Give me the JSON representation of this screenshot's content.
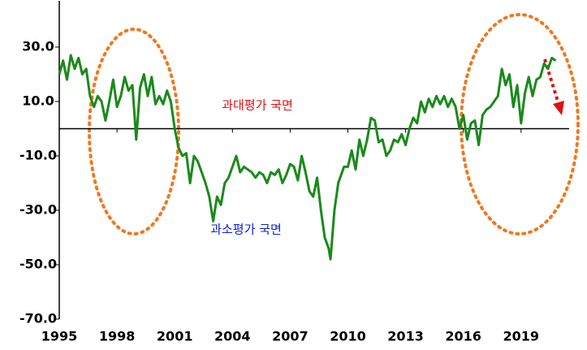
{
  "chart_data": {
    "type": "line",
    "color": "#1a8a1a",
    "annotations": [
      "과대평가 국면",
      "과소평가 국면"
    ],
    "xlim": [
      1995,
      2021.5
    ],
    "xticks": [
      1995,
      1998,
      2001,
      2004,
      2007,
      2010,
      2013,
      2016,
      2019
    ],
    "ylim": [
      -70,
      47
    ],
    "yticks": [
      {
        "value": 30,
        "label": "30.0"
      },
      {
        "value": 10,
        "label": "10.0"
      },
      {
        "value": -10,
        "label": "-10.0"
      },
      {
        "value": -30,
        "label": "-30.0"
      },
      {
        "value": -50,
        "label": "-50.0"
      },
      {
        "value": -70,
        "label": "-70.0"
      }
    ],
    "x": [
      1995.0,
      1995.2,
      1995.4,
      1995.6,
      1995.8,
      1996.0,
      1996.2,
      1996.4,
      1996.6,
      1996.8,
      1997.0,
      1997.2,
      1997.4,
      1997.6,
      1997.8,
      1998.0,
      1998.2,
      1998.4,
      1998.6,
      1998.8,
      1999.0,
      1999.2,
      1999.4,
      1999.6,
      1999.8,
      2000.0,
      2000.2,
      2000.4,
      2000.6,
      2000.8,
      2001.0,
      2001.2,
      2001.4,
      2001.6,
      2001.8,
      2002.0,
      2002.2,
      2002.4,
      2002.6,
      2002.8,
      2003.0,
      2003.2,
      2003.4,
      2003.6,
      2003.8,
      2004.0,
      2004.2,
      2004.4,
      2004.6,
      2004.8,
      2005.0,
      2005.2,
      2005.4,
      2005.6,
      2005.8,
      2006.0,
      2006.2,
      2006.4,
      2006.6,
      2006.8,
      2007.0,
      2007.2,
      2007.4,
      2007.6,
      2007.8,
      2008.0,
      2008.2,
      2008.4,
      2008.6,
      2008.8,
      2009.0,
      2009.1,
      2009.3,
      2009.5,
      2009.8,
      2010.0,
      2010.2,
      2010.4,
      2010.6,
      2010.8,
      2011.0,
      2011.2,
      2011.4,
      2011.6,
      2011.8,
      2012.0,
      2012.2,
      2012.4,
      2012.6,
      2012.8,
      2013.0,
      2013.2,
      2013.4,
      2013.6,
      2013.8,
      2014.0,
      2014.2,
      2014.4,
      2014.6,
      2014.8,
      2015.0,
      2015.2,
      2015.4,
      2015.6,
      2015.8,
      2016.0,
      2016.2,
      2016.4,
      2016.6,
      2016.8,
      2017.0,
      2017.2,
      2017.4,
      2017.6,
      2017.8,
      2018.0,
      2018.2,
      2018.4,
      2018.6,
      2018.8,
      2019.0,
      2019.2,
      2019.4,
      2019.6,
      2019.8,
      2020.0,
      2020.2,
      2020.4,
      2020.6,
      2020.8
    ],
    "values": [
      20,
      25,
      18,
      27,
      22,
      26,
      20,
      22,
      12,
      8,
      12,
      10,
      3,
      10,
      18,
      8,
      12,
      19,
      14,
      16,
      -4,
      15,
      20,
      12,
      19,
      9,
      12,
      9,
      14,
      10,
      0,
      -7,
      -10,
      -9,
      -20,
      -10,
      -12,
      -16,
      -20,
      -25,
      -34,
      -25,
      -28,
      -20,
      -18,
      -14,
      -10,
      -16,
      -14,
      -15,
      -16,
      -18,
      -16,
      -17,
      -20,
      -16,
      -17,
      -15,
      -20,
      -17,
      -13,
      -14,
      -19,
      -10,
      -16,
      -23,
      -25,
      -18,
      -30,
      -40,
      -44,
      -48,
      -30,
      -20,
      -14,
      -14,
      -8,
      -15,
      -4,
      -10,
      -4,
      4,
      3,
      -5,
      -4,
      -10,
      -8,
      -4,
      -5,
      -2,
      -6,
      0,
      4,
      2,
      10,
      6,
      11,
      8,
      12,
      9,
      12,
      8,
      11,
      8,
      0,
      5,
      -4,
      2,
      3,
      -6,
      5,
      7,
      8,
      10,
      12,
      22,
      16,
      20,
      8,
      16,
      2,
      13,
      19,
      12,
      18,
      19,
      24,
      22,
      26,
      25
    ]
  }
}
